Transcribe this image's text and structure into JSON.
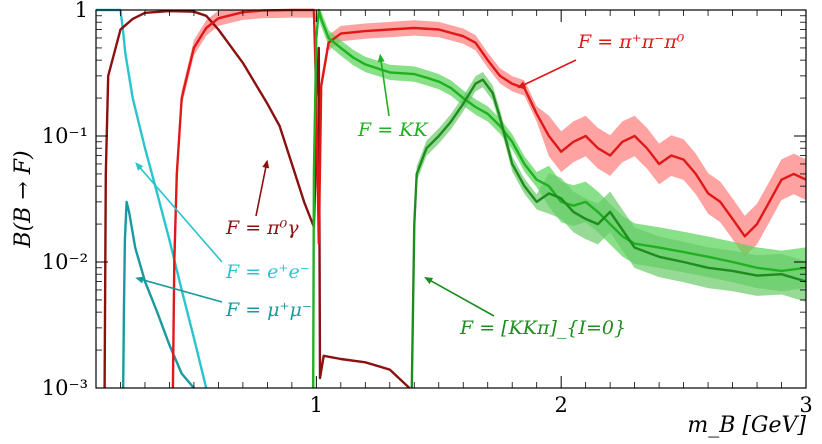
{
  "chart_data": {
    "type": "line",
    "x_scale": "linear",
    "y_scale": "log",
    "xlim": [
      0.1,
      3.0
    ],
    "ylim": [
      0.001,
      1.0
    ],
    "xlabel": "m_B [GeV]",
    "ylabel": "B(B → F)",
    "x_ticks": [
      {
        "value": 1,
        "label": "1"
      },
      {
        "value": 2,
        "label": "2"
      },
      {
        "value": 3,
        "label": "3"
      }
    ],
    "y_ticks": [
      {
        "value": 1,
        "label": "1"
      },
      {
        "value": 0.1,
        "label": "10⁻¹"
      },
      {
        "value": 0.01,
        "label": "10⁻²"
      },
      {
        "value": 0.001,
        "label": "10⁻³"
      }
    ],
    "grid": false,
    "series": [
      {
        "key": "ee",
        "name": "F = e⁺e⁻",
        "color": "#29c4cc",
        "band": false,
        "points": [
          [
            0.1,
            1.0
          ],
          [
            0.2,
            1.0
          ],
          [
            0.21,
            0.7
          ],
          [
            0.22,
            0.45
          ],
          [
            0.25,
            0.2
          ],
          [
            0.3,
            0.08
          ],
          [
            0.35,
            0.035
          ],
          [
            0.4,
            0.015
          ],
          [
            0.45,
            0.006
          ],
          [
            0.5,
            0.0025
          ],
          [
            0.55,
            0.001
          ]
        ]
      },
      {
        "key": "mumu",
        "name": "F = μ⁺μ⁻",
        "color": "#1a9aa0",
        "band": false,
        "points": [
          [
            0.211,
            0.001
          ],
          [
            0.214,
            0.004
          ],
          [
            0.218,
            0.015
          ],
          [
            0.225,
            0.03
          ],
          [
            0.235,
            0.025
          ],
          [
            0.26,
            0.013
          ],
          [
            0.3,
            0.007
          ],
          [
            0.35,
            0.004
          ],
          [
            0.4,
            0.0022
          ],
          [
            0.45,
            0.0013
          ],
          [
            0.5,
            0.001
          ]
        ]
      },
      {
        "key": "pi0gamma",
        "name": "F = π⁰γ",
        "color": "#8b1010",
        "band": false,
        "points": [
          [
            0.135,
            0.001
          ],
          [
            0.14,
            0.05
          ],
          [
            0.15,
            0.3
          ],
          [
            0.2,
            0.7
          ],
          [
            0.25,
            0.85
          ],
          [
            0.3,
            0.95
          ],
          [
            0.4,
            0.98
          ],
          [
            0.5,
            0.97
          ],
          [
            0.55,
            0.9
          ],
          [
            0.6,
            0.7
          ],
          [
            0.7,
            0.38
          ],
          [
            0.8,
            0.18
          ],
          [
            0.85,
            0.12
          ],
          [
            0.9,
            0.06
          ],
          [
            0.95,
            0.03
          ],
          [
            0.99,
            0.019
          ],
          [
            0.995,
            0.04
          ],
          [
            1.0,
            0.2
          ],
          [
            1.01,
            0.5
          ],
          [
            1.015,
            0.0012
          ],
          [
            1.03,
            0.0018
          ],
          [
            1.1,
            0.0017
          ],
          [
            1.2,
            0.0016
          ],
          [
            1.3,
            0.0014
          ],
          [
            1.38,
            0.001
          ]
        ]
      },
      {
        "key": "pipipi",
        "name": "F = π⁺π⁻π⁰",
        "color": "#e01818",
        "band_color": "#ff7a7a",
        "band": true,
        "points": [
          [
            0.414,
            0.001
          ],
          [
            0.42,
            0.01
          ],
          [
            0.43,
            0.05
          ],
          [
            0.45,
            0.2
          ],
          [
            0.5,
            0.5
          ],
          [
            0.55,
            0.72
          ],
          [
            0.6,
            0.86
          ],
          [
            0.7,
            0.96
          ],
          [
            0.78,
            0.99
          ],
          [
            0.9,
            1.0
          ],
          [
            0.99,
            1.0
          ],
          [
            1.0,
            0.2
          ],
          [
            1.01,
            0.014
          ],
          [
            1.02,
            0.25
          ],
          [
            1.05,
            0.55
          ],
          [
            1.1,
            0.65
          ],
          [
            1.2,
            0.68
          ],
          [
            1.3,
            0.7
          ],
          [
            1.4,
            0.72
          ],
          [
            1.5,
            0.7
          ],
          [
            1.6,
            0.62
          ],
          [
            1.65,
            0.55
          ],
          [
            1.7,
            0.4
          ],
          [
            1.75,
            0.3
          ],
          [
            1.8,
            0.26
          ],
          [
            1.85,
            0.24
          ],
          [
            1.9,
            0.15
          ],
          [
            1.95,
            0.1
          ],
          [
            2.0,
            0.075
          ],
          [
            2.05,
            0.09
          ],
          [
            2.1,
            0.1
          ],
          [
            2.15,
            0.08
          ],
          [
            2.2,
            0.07
          ],
          [
            2.25,
            0.09
          ],
          [
            2.3,
            0.1
          ],
          [
            2.35,
            0.08
          ],
          [
            2.4,
            0.06
          ],
          [
            2.45,
            0.07
          ],
          [
            2.5,
            0.065
          ],
          [
            2.55,
            0.05
          ],
          [
            2.6,
            0.035
          ],
          [
            2.65,
            0.03
          ],
          [
            2.7,
            0.022
          ],
          [
            2.75,
            0.016
          ],
          [
            2.8,
            0.02
          ],
          [
            2.85,
            0.03
          ],
          [
            2.9,
            0.045
          ],
          [
            2.95,
            0.05
          ],
          [
            3.0,
            0.045
          ]
        ]
      },
      {
        "key": "kk",
        "name": "F = KK",
        "color": "#20b020",
        "band_color": "#55d455",
        "band": true,
        "points": [
          [
            0.987,
            0.001
          ],
          [
            0.99,
            0.05
          ],
          [
            1.0,
            0.6
          ],
          [
            1.01,
            1.0
          ],
          [
            1.02,
            0.85
          ],
          [
            1.05,
            0.6
          ],
          [
            1.1,
            0.5
          ],
          [
            1.15,
            0.42
          ],
          [
            1.2,
            0.37
          ],
          [
            1.3,
            0.32
          ],
          [
            1.4,
            0.31
          ],
          [
            1.45,
            0.29
          ],
          [
            1.5,
            0.27
          ],
          [
            1.55,
            0.24
          ],
          [
            1.6,
            0.2
          ],
          [
            1.65,
            0.17
          ],
          [
            1.7,
            0.15
          ],
          [
            1.75,
            0.12
          ],
          [
            1.8,
            0.09
          ],
          [
            1.85,
            0.06
          ],
          [
            1.9,
            0.045
          ],
          [
            1.95,
            0.04
          ],
          [
            2.0,
            0.03
          ],
          [
            2.05,
            0.028
          ],
          [
            2.1,
            0.03
          ],
          [
            2.15,
            0.025
          ],
          [
            2.2,
            0.02
          ],
          [
            2.25,
            0.016
          ],
          [
            2.3,
            0.014
          ],
          [
            2.4,
            0.013
          ],
          [
            2.5,
            0.012
          ],
          [
            2.6,
            0.011
          ],
          [
            2.7,
            0.01
          ],
          [
            2.8,
            0.009
          ],
          [
            2.9,
            0.0085
          ],
          [
            3.0,
            0.009
          ]
        ]
      },
      {
        "key": "kkpi",
        "name": "F = [KKπ]_{I=0}",
        "color": "#1e8c1e",
        "band_color": "#6acb6a",
        "band": true,
        "points": [
          [
            1.39,
            0.001
          ],
          [
            1.4,
            0.02
          ],
          [
            1.41,
            0.05
          ],
          [
            1.45,
            0.08
          ],
          [
            1.5,
            0.1
          ],
          [
            1.55,
            0.13
          ],
          [
            1.6,
            0.18
          ],
          [
            1.65,
            0.26
          ],
          [
            1.68,
            0.28
          ],
          [
            1.72,
            0.22
          ],
          [
            1.75,
            0.14
          ],
          [
            1.8,
            0.06
          ],
          [
            1.85,
            0.04
          ],
          [
            1.9,
            0.03
          ],
          [
            1.95,
            0.035
          ],
          [
            2.0,
            0.032
          ],
          [
            2.05,
            0.025
          ],
          [
            2.1,
            0.022
          ],
          [
            2.15,
            0.02
          ],
          [
            2.2,
            0.025
          ],
          [
            2.25,
            0.018
          ],
          [
            2.3,
            0.013
          ],
          [
            2.4,
            0.011
          ],
          [
            2.5,
            0.01
          ],
          [
            2.6,
            0.009
          ],
          [
            2.7,
            0.0085
          ],
          [
            2.8,
            0.0078
          ],
          [
            2.9,
            0.008
          ],
          [
            3.0,
            0.007
          ]
        ]
      }
    ],
    "annotations": [
      {
        "key": "pipipi",
        "text": "F = π⁺π⁻π⁰",
        "color": "#e01818",
        "arrow_to": [
          1.82,
          0.24
        ]
      },
      {
        "key": "kk",
        "text": "F = KK",
        "color": "#20b020",
        "arrow_to": [
          1.26,
          0.45
        ]
      },
      {
        "key": "pi0gamma",
        "text": "F = π⁰γ",
        "color": "#8b1010",
        "arrow_to": [
          0.8,
          0.065
        ]
      },
      {
        "key": "ee",
        "text": "F = e⁺e⁻",
        "color": "#29c4cc",
        "arrow_to": [
          0.26,
          0.062
        ]
      },
      {
        "key": "mumu",
        "text": "F = μ⁺μ⁻",
        "color": "#1a9aa0",
        "arrow_to": [
          0.26,
          0.0075
        ]
      },
      {
        "key": "kkpi",
        "text": "F = [KKπ]_{I=0}",
        "color": "#1e8c1e",
        "arrow_to": [
          1.44,
          0.0076
        ]
      }
    ]
  }
}
